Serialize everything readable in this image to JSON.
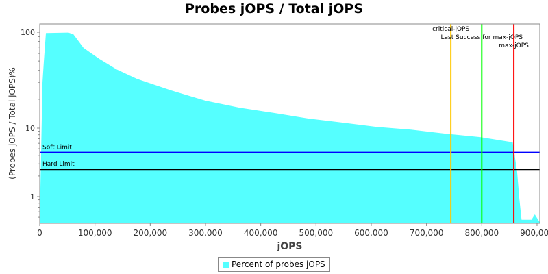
{
  "chart_data": {
    "type": "area",
    "title": "Probes jOPS / Total jOPS",
    "xlabel": "jOPS",
    "ylabel": "(Probes jOPS / Total jOPS)%",
    "xlim": [
      0,
      905000
    ],
    "ylim": [
      0.41,
      100
    ],
    "yscale": "log",
    "xticks": [
      0,
      100000,
      200000,
      300000,
      400000,
      500000,
      600000,
      700000,
      800000,
      900000
    ],
    "xtick_labels": [
      "0",
      "100,000",
      "200,000",
      "300,000",
      "400,000",
      "500,000",
      "600,000",
      "700,000",
      "800,000",
      "900,000"
    ],
    "yticks": [
      1,
      10,
      100
    ],
    "ytick_labels": [
      "1",
      "10",
      "100"
    ],
    "series": [
      {
        "name": "Percent of probes jOPS",
        "color": "#55ffff",
        "x": [
          0,
          5000,
          7400,
          11200,
          52000,
          61000,
          79400,
          108000,
          139000,
          176000,
          238000,
          300000,
          362000,
          424000,
          486000,
          548000,
          610000,
          672000,
          734000,
          797000,
          856000,
          864000,
          868000,
          872000,
          890000,
          896000,
          905000
        ],
        "y": [
          0.41,
          30,
          49,
          98,
          99,
          95,
          68.5,
          52.6,
          41,
          32.6,
          24.7,
          19.3,
          16.3,
          14.4,
          12.6,
          11.4,
          10.3,
          9.5,
          8.3,
          7.4,
          6.2,
          2.3,
          0.93,
          0.46,
          0.46,
          0.55,
          0.42
        ]
      }
    ],
    "hlines": [
      {
        "label": "Soft Limit",
        "value": 4.4,
        "color": "#0000ff"
      },
      {
        "label": "Hard Limit",
        "value": 2.5,
        "color": "#000000"
      }
    ],
    "vlines": [
      {
        "label": "critical-jOPS",
        "value": 744000,
        "color": "#ffc800"
      },
      {
        "label": "Last Success for max-jOPS",
        "value": 800000,
        "color": "#00ff00"
      },
      {
        "label": "max-jOPS",
        "value": 858000,
        "color": "#ff0000"
      }
    ],
    "legend": "bottom"
  }
}
